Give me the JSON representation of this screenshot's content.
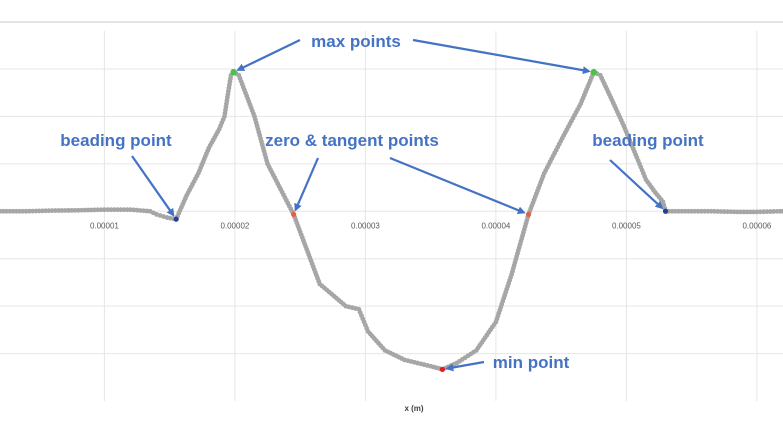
{
  "chart_data": {
    "type": "scatter",
    "xlabel": "x (m)",
    "ylabel": "",
    "xlim": [
      2e-06,
      6.2e-05
    ],
    "ylim": [
      -0.6,
      0.57
    ],
    "grid": true,
    "xticks": [
      1e-05,
      2e-05,
      3e-05,
      4e-05,
      5e-05,
      6e-05
    ],
    "xtick_labels": [
      "0.00001",
      "0.00002",
      "0.00003",
      "0.00004",
      "0.00005",
      "0.00006"
    ],
    "series": [
      {
        "color": "#a6a6a6",
        "profile_points": [
          [
            2e-06,
            0.0
          ],
          [
            4e-06,
            0.0
          ],
          [
            6e-06,
            0.002
          ],
          [
            8e-06,
            0.003
          ],
          [
            1e-05,
            0.005
          ],
          [
            1.2e-05,
            0.005
          ],
          [
            1.35e-05,
            0.0
          ],
          [
            1.4e-05,
            -0.01
          ],
          [
            1.48e-05,
            -0.02
          ],
          [
            1.55e-05,
            -0.025
          ],
          [
            1.63e-05,
            0.05
          ],
          [
            1.72e-05,
            0.12
          ],
          [
            1.8e-05,
            0.2
          ],
          [
            1.88e-05,
            0.26
          ],
          [
            1.92e-05,
            0.3
          ],
          [
            1.95e-05,
            0.38
          ],
          [
            1.97e-05,
            0.43
          ],
          [
            1.99e-05,
            0.44
          ],
          [
            2.03e-05,
            0.43
          ],
          [
            2.15e-05,
            0.3
          ],
          [
            2.25e-05,
            0.15
          ],
          [
            2.35e-05,
            0.07
          ],
          [
            2.45e-05,
            -0.01
          ],
          [
            2.55e-05,
            -0.12
          ],
          [
            2.65e-05,
            -0.23
          ],
          [
            2.85e-05,
            -0.3
          ],
          [
            2.95e-05,
            -0.31
          ],
          [
            3.02e-05,
            -0.38
          ],
          [
            3.15e-05,
            -0.44
          ],
          [
            3.3e-05,
            -0.47
          ],
          [
            3.5e-05,
            -0.49
          ],
          [
            3.59e-05,
            -0.5
          ],
          [
            3.7e-05,
            -0.48
          ],
          [
            3.85e-05,
            -0.44
          ],
          [
            4e-05,
            -0.35
          ],
          [
            4.12e-05,
            -0.2
          ],
          [
            4.25e-05,
            -0.01
          ],
          [
            4.37e-05,
            0.12
          ],
          [
            4.52e-05,
            0.24
          ],
          [
            4.65e-05,
            0.34
          ],
          [
            4.75e-05,
            0.44
          ],
          [
            4.8e-05,
            0.43
          ],
          [
            4.88e-05,
            0.36
          ],
          [
            4.98e-05,
            0.27
          ],
          [
            5.08e-05,
            0.17
          ],
          [
            5.15e-05,
            0.1
          ],
          [
            5.22e-05,
            0.06
          ],
          [
            5.28e-05,
            0.03
          ],
          [
            5.3e-05,
            0.0
          ],
          [
            5.45e-05,
            0.0
          ],
          [
            5.65e-05,
            0.0
          ],
          [
            5.85e-05,
            -0.002
          ],
          [
            6e-05,
            -0.002
          ],
          [
            6.18e-05,
            0.0
          ],
          [
            6.22e-05,
            0.0
          ]
        ]
      }
    ],
    "marked_points": [
      {
        "role": "beading",
        "x": 1.55e-05,
        "y": -0.025,
        "color": "#1f3f9e"
      },
      {
        "role": "max",
        "x": 1.99e-05,
        "y": 0.44,
        "color": "#4cc24c"
      },
      {
        "role": "zero-tangent",
        "x": 2.45e-05,
        "y": -0.01,
        "color": "#e06040"
      },
      {
        "role": "min",
        "x": 3.59e-05,
        "y": -0.5,
        "color": "#e02020"
      },
      {
        "role": "zero-tangent",
        "x": 4.25e-05,
        "y": -0.01,
        "color": "#e06040"
      },
      {
        "role": "max",
        "x": 4.75e-05,
        "y": 0.44,
        "color": "#4cc24c"
      },
      {
        "role": "beading",
        "x": 5.3e-05,
        "y": 0.0,
        "color": "#1f3f9e"
      }
    ],
    "annotations": [
      {
        "text": "max points",
        "targets": [
          1,
          5
        ]
      },
      {
        "text": "beading point",
        "targets": [
          0
        ]
      },
      {
        "text": "zero & tangent points",
        "targets": [
          2,
          4
        ]
      },
      {
        "text": "beading point",
        "targets": [
          6
        ]
      },
      {
        "text": "min point",
        "targets": [
          3
        ]
      }
    ],
    "annotation_color": "#4472c4"
  }
}
